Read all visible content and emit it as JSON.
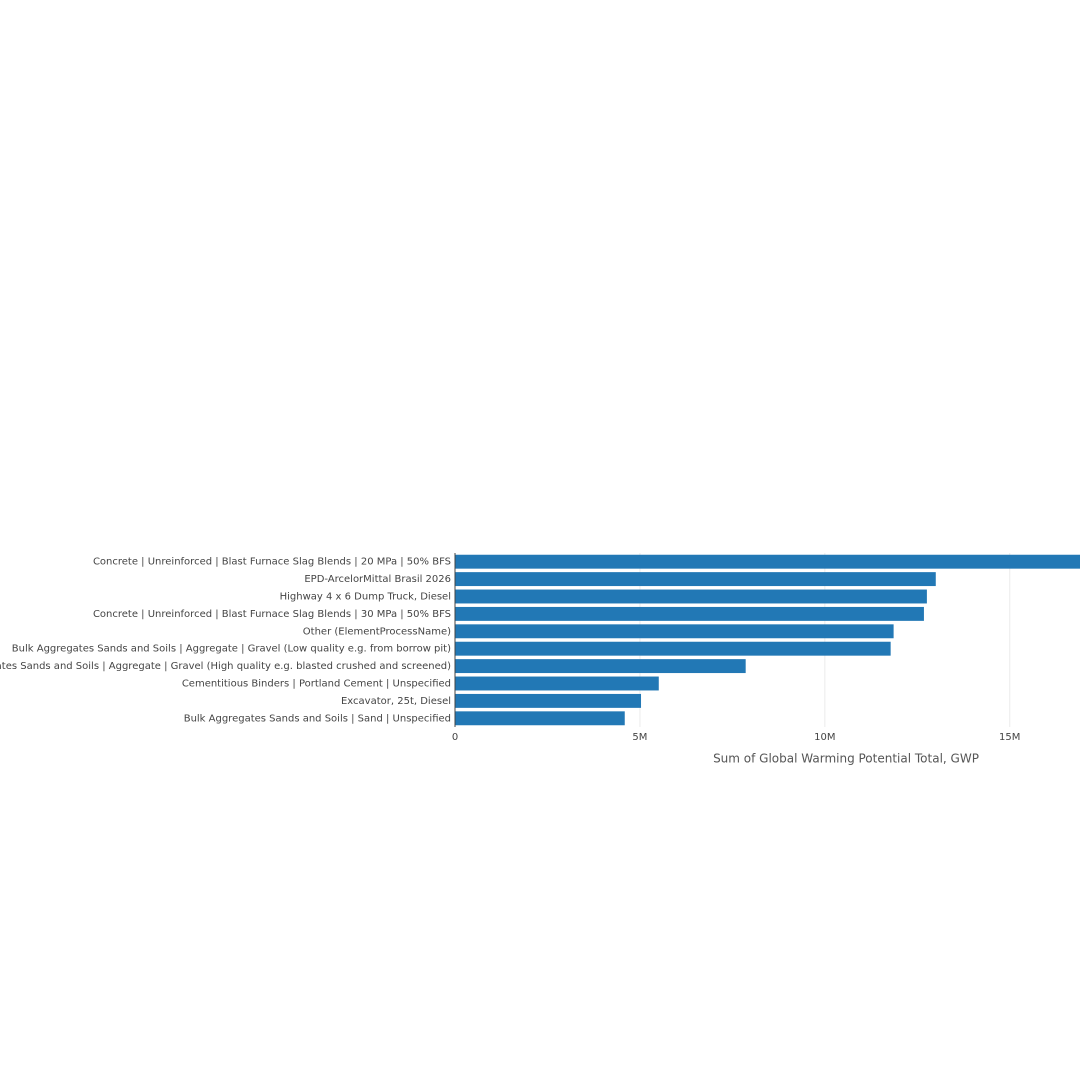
{
  "chart_data": {
    "type": "barh",
    "x_label": "Sum of Global Warming Potential Total, GWP",
    "categories": [
      "Concrete | Unreinforced | Blast Furnace Slag Blends |  20 MPa | 50% BFS",
      "EPD-ArcelorMittal Brasil 2026",
      "Highway 4 x 6 Dump Truck, Diesel",
      "Concrete | Unreinforced | Blast Furnace Slag Blends |  30 MPa | 50% BFS",
      "Other (ElementProcessName)",
      "Bulk Aggregates Sands and Soils | Aggregate | Gravel (Low quality e.g. from borrow pit)",
      "Bulk Aggregates Sands and Soils | Aggregate | Gravel (High quality e.g. blasted crushed and screened)",
      "Cementitious Binders | Portland Cement | Unspecified",
      "Excavator, 25t, Diesel",
      "Bulk Aggregates Sands and Soils | Sand | Unspecified"
    ],
    "values": [
      17200000,
      13000000,
      12760000,
      12680000,
      11860000,
      11780000,
      7860000,
      5510000,
      5030000,
      4590000
    ],
    "color": "#2278b5",
    "xlim": [
      0,
      16900000
    ],
    "xticks": [
      0,
      {
        "value": 5000000,
        "label": "5M"
      },
      {
        "value": 10000000,
        "label": "10M"
      },
      {
        "value": 15000000,
        "label": "15M"
      }
    ],
    "grid": true
  }
}
